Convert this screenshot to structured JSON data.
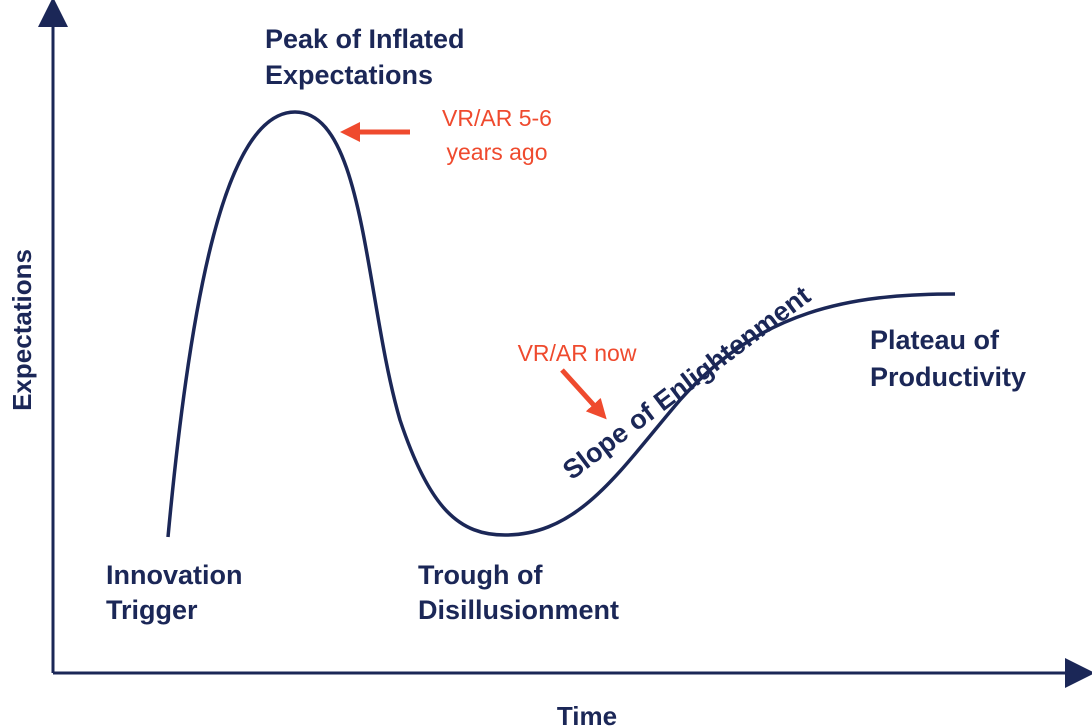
{
  "axes": {
    "y_label": "Expectations",
    "x_label": "Time"
  },
  "phases": [
    {
      "lines": [
        "Innovation",
        "Trigger"
      ]
    },
    {
      "lines": [
        "Peak of Inflated",
        "Expectations"
      ]
    },
    {
      "lines": [
        "Trough of",
        "Disillusionment"
      ]
    },
    {
      "lines": [
        "Slope of Enlightenment"
      ]
    },
    {
      "lines": [
        "Plateau of",
        "Productivity"
      ]
    }
  ],
  "annotations": [
    {
      "lines": [
        "VR/AR 5-6",
        "years ago"
      ]
    },
    {
      "lines": [
        "VR/AR now"
      ]
    }
  ]
}
